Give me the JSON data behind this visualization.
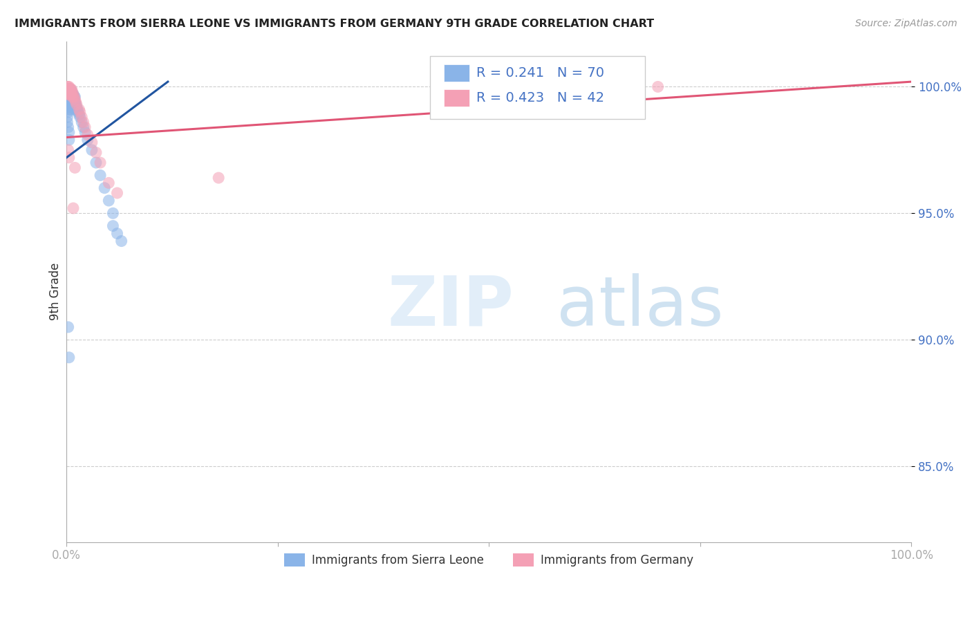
{
  "title": "IMMIGRANTS FROM SIERRA LEONE VS IMMIGRANTS FROM GERMANY 9TH GRADE CORRELATION CHART",
  "source": "Source: ZipAtlas.com",
  "ylabel": "9th Grade",
  "ylim": [
    0.82,
    1.018
  ],
  "xlim": [
    0.0,
    1.0
  ],
  "yticks": [
    0.85,
    0.9,
    0.95,
    1.0
  ],
  "ytick_labels": [
    "85.0%",
    "90.0%",
    "95.0%",
    "100.0%"
  ],
  "xtick_labels_left": "0.0%",
  "xtick_labels_right": "100.0%",
  "legend_label1": "Immigrants from Sierra Leone",
  "legend_label2": "Immigrants from Germany",
  "r1": 0.241,
  "n1": 70,
  "r2": 0.423,
  "n2": 42,
  "color_blue": "#8ab4e8",
  "color_pink": "#f4a0b5",
  "trendline_blue": "#2155a0",
  "trendline_pink": "#e05575",
  "blue_trend_x": [
    0.0,
    0.12
  ],
  "blue_trend_y": [
    0.972,
    1.002
  ],
  "pink_trend_x": [
    0.0,
    1.0
  ],
  "pink_trend_y": [
    0.98,
    1.002
  ],
  "blue_x": [
    0.001,
    0.001,
    0.001,
    0.001,
    0.001,
    0.001,
    0.002,
    0.002,
    0.002,
    0.002,
    0.002,
    0.002,
    0.002,
    0.003,
    0.003,
    0.003,
    0.003,
    0.003,
    0.003,
    0.004,
    0.004,
    0.004,
    0.004,
    0.004,
    0.005,
    0.005,
    0.005,
    0.005,
    0.005,
    0.006,
    0.006,
    0.006,
    0.006,
    0.007,
    0.007,
    0.007,
    0.008,
    0.008,
    0.008,
    0.009,
    0.009,
    0.01,
    0.01,
    0.01,
    0.011,
    0.012,
    0.013,
    0.014,
    0.015,
    0.016,
    0.018,
    0.02,
    0.022,
    0.025,
    0.03,
    0.035,
    0.04,
    0.045,
    0.05,
    0.055,
    0.001,
    0.001,
    0.002,
    0.003,
    0.003,
    0.055,
    0.06,
    0.065,
    0.002,
    0.003
  ],
  "blue_y": [
    0.999,
    0.998,
    0.997,
    0.996,
    0.995,
    0.993,
    0.999,
    0.998,
    0.997,
    0.996,
    0.994,
    0.992,
    0.99,
    0.999,
    0.998,
    0.997,
    0.995,
    0.993,
    0.991,
    0.999,
    0.998,
    0.996,
    0.994,
    0.992,
    0.999,
    0.997,
    0.995,
    0.993,
    0.991,
    0.998,
    0.996,
    0.994,
    0.992,
    0.997,
    0.995,
    0.993,
    0.997,
    0.995,
    0.992,
    0.996,
    0.994,
    0.996,
    0.994,
    0.991,
    0.993,
    0.992,
    0.991,
    0.99,
    0.989,
    0.988,
    0.986,
    0.984,
    0.982,
    0.979,
    0.975,
    0.97,
    0.965,
    0.96,
    0.955,
    0.95,
    0.988,
    0.986,
    0.984,
    0.982,
    0.979,
    0.945,
    0.942,
    0.939,
    0.905,
    0.893
  ],
  "pink_x": [
    0.001,
    0.001,
    0.001,
    0.002,
    0.002,
    0.002,
    0.002,
    0.003,
    0.003,
    0.003,
    0.003,
    0.004,
    0.004,
    0.004,
    0.005,
    0.005,
    0.006,
    0.006,
    0.007,
    0.007,
    0.008,
    0.009,
    0.01,
    0.011,
    0.012,
    0.015,
    0.016,
    0.018,
    0.02,
    0.022,
    0.025,
    0.03,
    0.035,
    0.04,
    0.05,
    0.06,
    0.18,
    0.7,
    0.002,
    0.003,
    0.01,
    0.008
  ],
  "pink_y": [
    1.0,
    0.999,
    0.998,
    1.0,
    0.999,
    0.998,
    0.997,
    1.0,
    0.999,
    0.998,
    0.997,
    0.999,
    0.998,
    0.997,
    0.999,
    0.997,
    0.999,
    0.997,
    0.998,
    0.996,
    0.997,
    0.996,
    0.995,
    0.994,
    0.993,
    0.991,
    0.99,
    0.988,
    0.986,
    0.984,
    0.981,
    0.978,
    0.974,
    0.97,
    0.962,
    0.958,
    0.964,
    1.0,
    0.975,
    0.972,
    0.968,
    0.952
  ]
}
